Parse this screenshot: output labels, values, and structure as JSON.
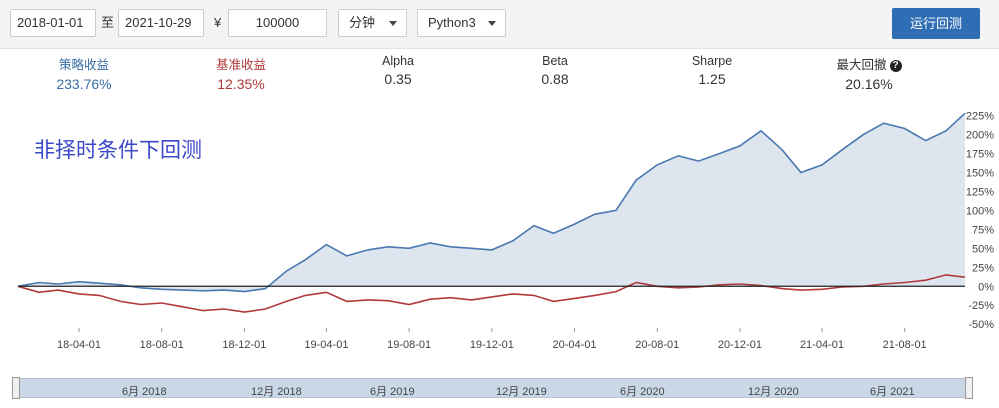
{
  "toolbar": {
    "start_date": "2018-01-01",
    "range_sep": "至",
    "end_date": "2021-10-29",
    "currency": "¥",
    "capital": "100000",
    "frequency": "分钟",
    "language": "Python3",
    "run_label": "运行回测"
  },
  "stats": [
    {
      "label": "策略收益",
      "value": "233.76%",
      "color": "#3a6ea5"
    },
    {
      "label": "基准收益",
      "value": "12.35%",
      "color": "#b03a3a"
    },
    {
      "label": "Alpha",
      "value": "0.35"
    },
    {
      "label": "Beta",
      "value": "0.88"
    },
    {
      "label": "Sharpe",
      "value": "1.25"
    },
    {
      "label": "最大回撤",
      "value": "20.16%",
      "help": "?"
    }
  ],
  "overlay_text": "非择时条件下回测",
  "chart_data": {
    "type": "line",
    "x_ticks": [
      "18-04-01",
      "18-08-01",
      "18-12-01",
      "19-04-01",
      "19-08-01",
      "19-12-01",
      "20-04-01",
      "20-08-01",
      "20-12-01",
      "21-04-01",
      "21-08-01"
    ],
    "y_ticks": [
      "225%",
      "200%",
      "175%",
      "150%",
      "125%",
      "100%",
      "75%",
      "50%",
      "25%",
      "0%",
      "-25%",
      "-50%"
    ],
    "ylim": [
      -55,
      235
    ],
    "xrange": [
      "2018-01-01",
      "2021-10-29"
    ],
    "series": [
      {
        "name": "策略收益",
        "color": "#4a78b0",
        "fill": "#dde5ef",
        "points": [
          [
            "2018-01-01",
            0
          ],
          [
            "2018-02-01",
            5
          ],
          [
            "2018-03-01",
            3
          ],
          [
            "2018-04-01",
            6
          ],
          [
            "2018-05-01",
            4
          ],
          [
            "2018-06-01",
            2
          ],
          [
            "2018-07-01",
            -2
          ],
          [
            "2018-08-01",
            -4
          ],
          [
            "2018-09-01",
            -5
          ],
          [
            "2018-10-01",
            -6
          ],
          [
            "2018-11-01",
            -5
          ],
          [
            "2018-12-01",
            -7
          ],
          [
            "2019-01-01",
            -3
          ],
          [
            "2019-02-01",
            20
          ],
          [
            "2019-03-01",
            35
          ],
          [
            "2019-04-01",
            55
          ],
          [
            "2019-05-01",
            40
          ],
          [
            "2019-06-01",
            48
          ],
          [
            "2019-07-01",
            52
          ],
          [
            "2019-08-01",
            50
          ],
          [
            "2019-09-01",
            57
          ],
          [
            "2019-10-01",
            52
          ],
          [
            "2019-11-01",
            50
          ],
          [
            "2019-12-01",
            48
          ],
          [
            "2020-01-01",
            60
          ],
          [
            "2020-02-01",
            80
          ],
          [
            "2020-03-01",
            70
          ],
          [
            "2020-04-01",
            82
          ],
          [
            "2020-05-01",
            95
          ],
          [
            "2020-06-01",
            100
          ],
          [
            "2020-07-01",
            140
          ],
          [
            "2020-08-01",
            160
          ],
          [
            "2020-09-01",
            172
          ],
          [
            "2020-10-01",
            165
          ],
          [
            "2020-11-01",
            175
          ],
          [
            "2020-12-01",
            185
          ],
          [
            "2021-01-01",
            205
          ],
          [
            "2021-02-01",
            180
          ],
          [
            "2021-03-01",
            150
          ],
          [
            "2021-04-01",
            160
          ],
          [
            "2021-05-01",
            180
          ],
          [
            "2021-06-01",
            200
          ],
          [
            "2021-07-01",
            215
          ],
          [
            "2021-08-01",
            208
          ],
          [
            "2021-09-01",
            192
          ],
          [
            "2021-10-01",
            205
          ],
          [
            "2021-10-29",
            228
          ]
        ]
      },
      {
        "name": "基准收益",
        "color": "#b03a3a",
        "points": [
          [
            "2018-01-01",
            0
          ],
          [
            "2018-02-01",
            -8
          ],
          [
            "2018-03-01",
            -5
          ],
          [
            "2018-04-01",
            -10
          ],
          [
            "2018-05-01",
            -12
          ],
          [
            "2018-06-01",
            -20
          ],
          [
            "2018-07-01",
            -24
          ],
          [
            "2018-08-01",
            -22
          ],
          [
            "2018-09-01",
            -27
          ],
          [
            "2018-10-01",
            -32
          ],
          [
            "2018-11-01",
            -30
          ],
          [
            "2018-12-01",
            -34
          ],
          [
            "2019-01-01",
            -30
          ],
          [
            "2019-02-01",
            -20
          ],
          [
            "2019-03-01",
            -12
          ],
          [
            "2019-04-01",
            -8
          ],
          [
            "2019-05-01",
            -20
          ],
          [
            "2019-06-01",
            -18
          ],
          [
            "2019-07-01",
            -19
          ],
          [
            "2019-08-01",
            -24
          ],
          [
            "2019-09-01",
            -17
          ],
          [
            "2019-10-01",
            -15
          ],
          [
            "2019-11-01",
            -18
          ],
          [
            "2019-12-01",
            -14
          ],
          [
            "2020-01-01",
            -10
          ],
          [
            "2020-02-01",
            -12
          ],
          [
            "2020-03-01",
            -20
          ],
          [
            "2020-04-01",
            -16
          ],
          [
            "2020-05-01",
            -12
          ],
          [
            "2020-06-01",
            -7
          ],
          [
            "2020-07-01",
            5
          ],
          [
            "2020-08-01",
            0
          ],
          [
            "2020-09-01",
            -2
          ],
          [
            "2020-10-01",
            -1
          ],
          [
            "2020-11-01",
            2
          ],
          [
            "2020-12-01",
            3
          ],
          [
            "2021-01-01",
            1
          ],
          [
            "2021-02-01",
            -3
          ],
          [
            "2021-03-01",
            -5
          ],
          [
            "2021-04-01",
            -4
          ],
          [
            "2021-05-01",
            -1
          ],
          [
            "2021-06-01",
            0
          ],
          [
            "2021-07-01",
            3
          ],
          [
            "2021-08-01",
            5
          ],
          [
            "2021-09-01",
            8
          ],
          [
            "2021-10-01",
            15
          ],
          [
            "2021-10-29",
            12
          ]
        ]
      }
    ]
  },
  "navigator": {
    "labels": [
      "6月 2018",
      "12月 2018",
      "6月 2019",
      "12月 2019",
      "6月 2020",
      "12月 2020",
      "6月 2021"
    ]
  }
}
